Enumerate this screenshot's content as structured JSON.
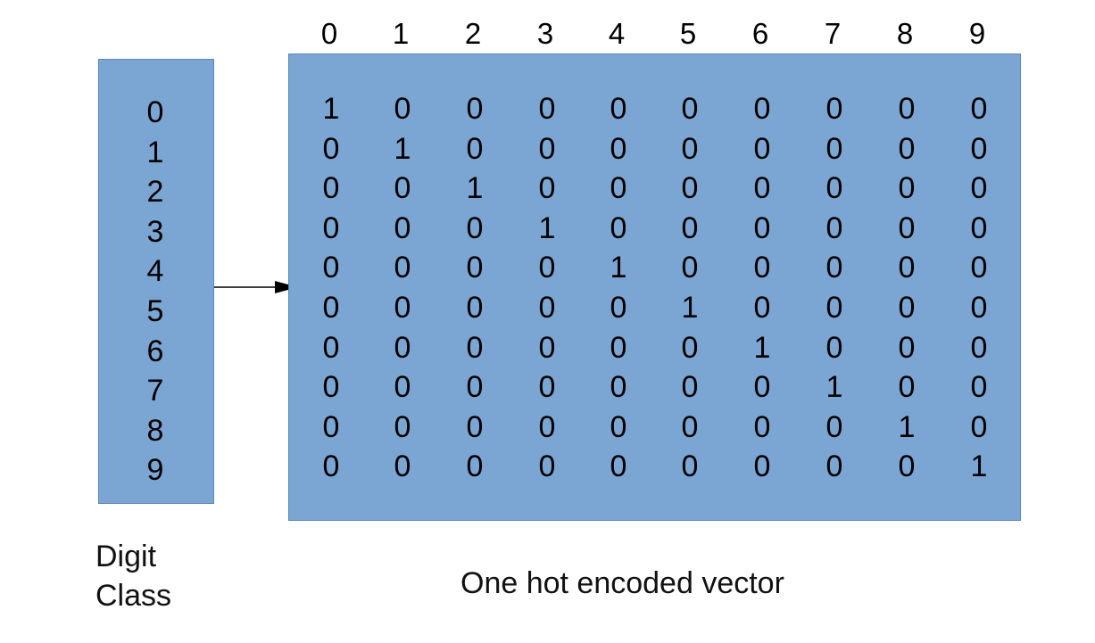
{
  "digit_class": {
    "values": [
      "0",
      "1",
      "2",
      "3",
      "4",
      "5",
      "6",
      "7",
      "8",
      "9"
    ],
    "label_line1": "Digit",
    "label_line2": "Class"
  },
  "one_hot": {
    "column_headers": [
      "0",
      "1",
      "2",
      "3",
      "4",
      "5",
      "6",
      "7",
      "8",
      "9"
    ],
    "rows": [
      [
        "1",
        "0",
        "0",
        "0",
        "0",
        "0",
        "0",
        "0",
        "0",
        "0"
      ],
      [
        "0",
        "1",
        "0",
        "0",
        "0",
        "0",
        "0",
        "0",
        "0",
        "0"
      ],
      [
        "0",
        "0",
        "1",
        "0",
        "0",
        "0",
        "0",
        "0",
        "0",
        "0"
      ],
      [
        "0",
        "0",
        "0",
        "1",
        "0",
        "0",
        "0",
        "0",
        "0",
        "0"
      ],
      [
        "0",
        "0",
        "0",
        "0",
        "1",
        "0",
        "0",
        "0",
        "0",
        "0"
      ],
      [
        "0",
        "0",
        "0",
        "0",
        "0",
        "1",
        "0",
        "0",
        "0",
        "0"
      ],
      [
        "0",
        "0",
        "0",
        "0",
        "0",
        "0",
        "1",
        "0",
        "0",
        "0"
      ],
      [
        "0",
        "0",
        "0",
        "0",
        "0",
        "0",
        "0",
        "1",
        "0",
        "0"
      ],
      [
        "0",
        "0",
        "0",
        "0",
        "0",
        "0",
        "0",
        "0",
        "1",
        "0"
      ],
      [
        "0",
        "0",
        "0",
        "0",
        "0",
        "0",
        "0",
        "0",
        "0",
        "1"
      ]
    ],
    "label": "One hot encoded vector"
  },
  "colors": {
    "box_fill": "#7ba6d3",
    "box_border": "#5b86b6",
    "text": "#000000"
  }
}
